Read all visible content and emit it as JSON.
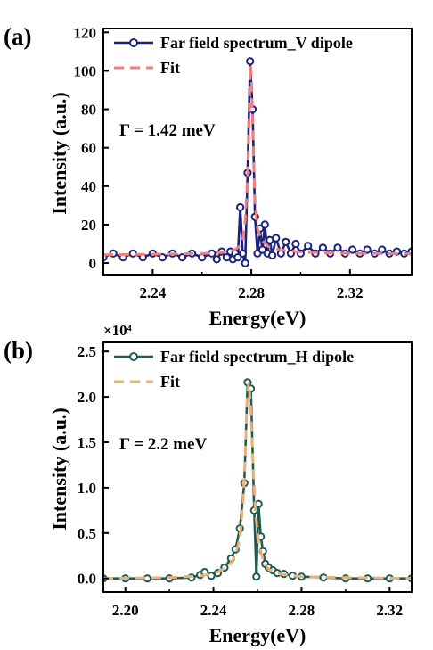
{
  "chart_data": [
    {
      "type": "line",
      "panel_label": "(a)",
      "xlabel": "Energy(eV)",
      "ylabel": "Intensity (a.u.)",
      "y_multiplier": "",
      "xlim": [
        2.22,
        2.345
      ],
      "ylim": [
        -6,
        122
      ],
      "xticks": [
        2.24,
        2.28,
        2.32
      ],
      "xtick_labels": [
        "2.24",
        "2.28",
        "2.32"
      ],
      "yticks": [
        0,
        20,
        40,
        60,
        80,
        100,
        120
      ],
      "ytick_labels": [
        "0",
        "20",
        "40",
        "60",
        "80",
        "100",
        "120"
      ],
      "annotation": "Γ = 1.42 meV",
      "legend_position": "top-right",
      "series": [
        {
          "name": "Far field spectrum_V dipole",
          "style": "line-open-circle",
          "color": "#1a237e",
          "x": [
            2.22,
            2.224,
            2.228,
            2.232,
            2.236,
            2.24,
            2.244,
            2.248,
            2.252,
            2.256,
            2.26,
            2.264,
            2.266,
            2.268,
            2.27,
            2.2715,
            2.2725,
            2.2735,
            2.2745,
            2.2755,
            2.2765,
            2.2775,
            2.2785,
            2.2795,
            2.2805,
            2.2815,
            2.2825,
            2.2835,
            2.2845,
            2.2855,
            2.2865,
            2.2875,
            2.2885,
            2.29,
            2.292,
            2.294,
            2.296,
            2.298,
            2.3,
            2.303,
            2.306,
            2.309,
            2.312,
            2.315,
            2.318,
            2.321,
            2.324,
            2.327,
            2.33,
            2.333,
            2.336,
            2.339,
            2.342,
            2.345
          ],
          "y": [
            3,
            5,
            3,
            5,
            3,
            5,
            3,
            5,
            3,
            5,
            3,
            5,
            2,
            6,
            3,
            6,
            2,
            5,
            3,
            29,
            5,
            0,
            47,
            105,
            80,
            24,
            5,
            18,
            7,
            20,
            5,
            12,
            4,
            13,
            5,
            11,
            5,
            10,
            5,
            9,
            5,
            8,
            5,
            8,
            5,
            7,
            5,
            7,
            5,
            7,
            5,
            6,
            5,
            6
          ]
        },
        {
          "name": "Fit",
          "style": "dashed",
          "color": "#f08080",
          "x": [
            2.22,
            2.23,
            2.24,
            2.25,
            2.26,
            2.265,
            2.27,
            2.273,
            2.275,
            2.2765,
            2.2775,
            2.2785,
            2.2792,
            2.2797,
            2.2802,
            2.2808,
            2.2815,
            2.2825,
            2.284,
            2.287,
            2.292,
            2.3,
            2.31,
            2.32,
            2.33,
            2.345
          ],
          "y": [
            4.3,
            4.5,
            4.6,
            4.8,
            5.0,
            5.3,
            5.8,
            6.8,
            8.5,
            12,
            22,
            45,
            78,
            103,
            92,
            58,
            32,
            18,
            12,
            8.5,
            6.8,
            5.8,
            5.3,
            5.1,
            5.0,
            4.9
          ]
        }
      ]
    },
    {
      "type": "line",
      "panel_label": "(b)",
      "xlabel": "Energy(eV)",
      "ylabel": "Intensity (a.u.)",
      "y_multiplier": "×10⁴",
      "xlim": [
        2.19,
        2.33
      ],
      "ylim": [
        -0.15,
        2.6
      ],
      "xticks": [
        2.2,
        2.24,
        2.28,
        2.32
      ],
      "xtick_labels": [
        "2.20",
        "2.24",
        "2.28",
        "2.32"
      ],
      "yticks": [
        0.0,
        0.5,
        1.0,
        1.5,
        2.0,
        2.5
      ],
      "ytick_labels": [
        "0.0",
        "0.5",
        "1.0",
        "1.5",
        "2.0",
        "2.5"
      ],
      "annotation": "Γ = 2.2 meV",
      "legend_position": "top-right",
      "series": [
        {
          "name": "Far field spectrum_H dipole",
          "style": "line-open-circle",
          "color": "#1e5b52",
          "x": [
            2.19,
            2.2,
            2.21,
            2.22,
            2.23,
            2.234,
            2.236,
            2.239,
            2.242,
            2.245,
            2.248,
            2.25,
            2.252,
            2.254,
            2.2555,
            2.257,
            2.2585,
            2.2595,
            2.2605,
            2.2615,
            2.2625,
            2.2635,
            2.265,
            2.267,
            2.269,
            2.272,
            2.276,
            2.28,
            2.29,
            2.3,
            2.31,
            2.32,
            2.33
          ],
          "y": [
            0.0,
            0.0,
            0.0,
            0.0,
            0.01,
            0.04,
            0.07,
            0.03,
            0.06,
            0.12,
            0.22,
            0.32,
            0.55,
            1.05,
            2.16,
            2.09,
            0.75,
            0.02,
            0.82,
            0.46,
            0.3,
            0.16,
            0.12,
            0.09,
            0.06,
            0.05,
            0.03,
            0.02,
            0.01,
            0.0,
            0.0,
            0.0,
            0.0
          ]
        },
        {
          "name": "Fit",
          "style": "dashed",
          "color": "#e8b27a",
          "x": [
            2.19,
            2.22,
            2.235,
            2.242,
            2.247,
            2.25,
            2.252,
            2.2535,
            2.2545,
            2.2552,
            2.256,
            2.2568,
            2.2578,
            2.259,
            2.2605,
            2.2625,
            2.265,
            2.27,
            2.28,
            2.3,
            2.33
          ],
          "y": [
            0.0,
            0.01,
            0.03,
            0.07,
            0.14,
            0.25,
            0.45,
            0.85,
            1.4,
            1.9,
            2.16,
            1.95,
            1.35,
            0.75,
            0.4,
            0.2,
            0.1,
            0.05,
            0.02,
            0.01,
            0.0
          ]
        }
      ]
    }
  ]
}
